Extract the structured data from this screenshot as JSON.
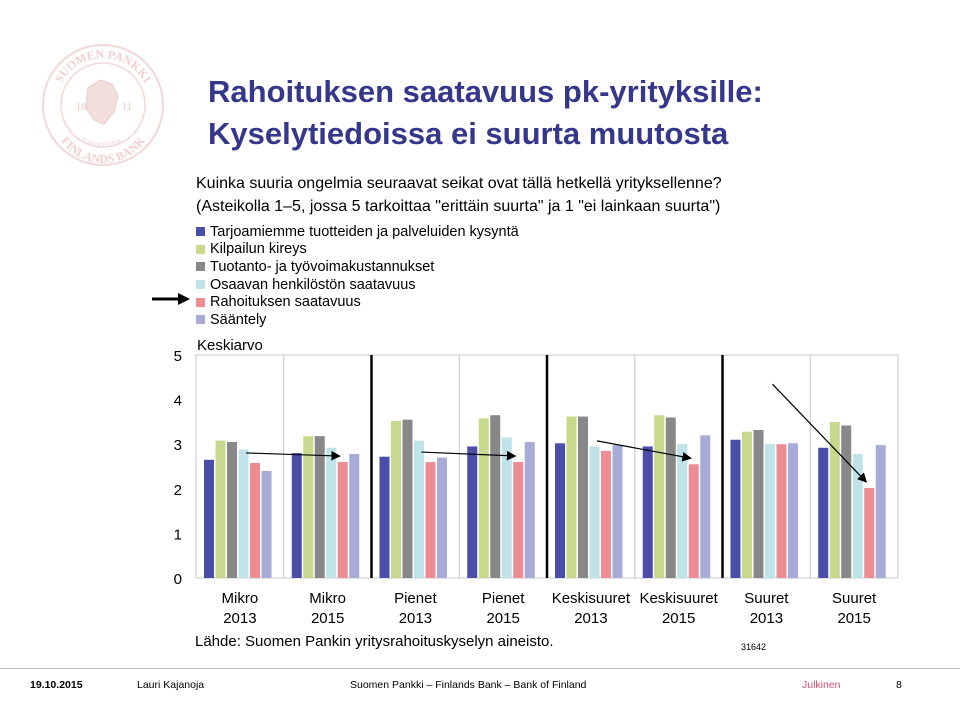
{
  "header": {
    "title_line1": "Rahoituksen saatavuus pk-yrityksille:",
    "title_line2": "Kyselytiedoissa ei suurta muutosta",
    "question_line1": "Kuinka suuria ongelmia seuraavat seikat ovat tällä hetkellä yrityksellenne?",
    "question_line2": "(Asteikolla 1–5, jossa 5 tarkoittaa \"erittäin suurta\" ja 1 \"ei lainkaan suurta\")"
  },
  "logo": {
    "arc_top": "SUOMEN PANKKI",
    "arc_bottom": "FINLANDS BANK",
    "arc_left": "EUROSYSTEM",
    "year_left": "18",
    "year_right": "11"
  },
  "colors": {
    "title": "#35378a",
    "series": [
      "#4a4ea8",
      "#c6d98c",
      "#888888",
      "#bfe3e8",
      "#ee8c94",
      "#a8aad8"
    ],
    "arrow": "#000000",
    "classification": "#d0506a"
  },
  "chart_data": {
    "type": "bar",
    "title": "Keskiarvo",
    "categories": [
      "Mikro\n2013",
      "Mikro\n2015",
      "Pienet\n2013",
      "Pienet\n2015",
      "Keskisuuret\n2013",
      "Keskisuuret\n2015",
      "Suuret\n2013",
      "Suuret\n2015"
    ],
    "series": [
      {
        "name": "Tarjoamiemme tuotteiden ja palveluiden kysyntä",
        "values": [
          2.65,
          2.8,
          2.72,
          2.95,
          3.02,
          2.95,
          3.1,
          2.92
        ]
      },
      {
        "name": "Kilpailun kireys",
        "values": [
          3.08,
          3.18,
          3.52,
          3.58,
          3.62,
          3.65,
          3.28,
          3.5
        ]
      },
      {
        "name": "Tuotanto- ja työvoimakustannukset",
        "values": [
          3.05,
          3.18,
          3.55,
          3.65,
          3.62,
          3.6,
          3.32,
          3.42
        ]
      },
      {
        "name": "Osaavan henkilöstön saatavuus",
        "values": [
          2.88,
          2.92,
          3.08,
          3.15,
          2.95,
          3.0,
          3.0,
          2.78
        ]
      },
      {
        "name": "Rahoituksen saatavuus",
        "values": [
          2.58,
          2.6,
          2.6,
          2.6,
          2.85,
          2.55,
          3.0,
          2.02
        ]
      },
      {
        "name": "Sääntely",
        "values": [
          2.4,
          2.78,
          2.7,
          3.05,
          2.98,
          3.2,
          3.02,
          2.98
        ]
      }
    ],
    "ylim": [
      0,
      5
    ],
    "yticks": [
      "0",
      "1",
      "2",
      "3",
      "4",
      "5"
    ],
    "grid": "vertical",
    "legend_position": "top-left",
    "highlighted_series": "Rahoituksen saatavuus",
    "annotations": "arrows indicating change from 2013 to 2015 for Rahoituksen saatavuus"
  },
  "source": "Lähde: Suomen Pankin yritysrahoituskyselyn aineisto.",
  "code": "31642",
  "footer": {
    "date": "19.10.2015",
    "author": "Lauri Kajanoja",
    "org": "Suomen Pankki  –  Finlands Bank  –  Bank of Finland",
    "classification": "Julkinen",
    "page": "8"
  }
}
